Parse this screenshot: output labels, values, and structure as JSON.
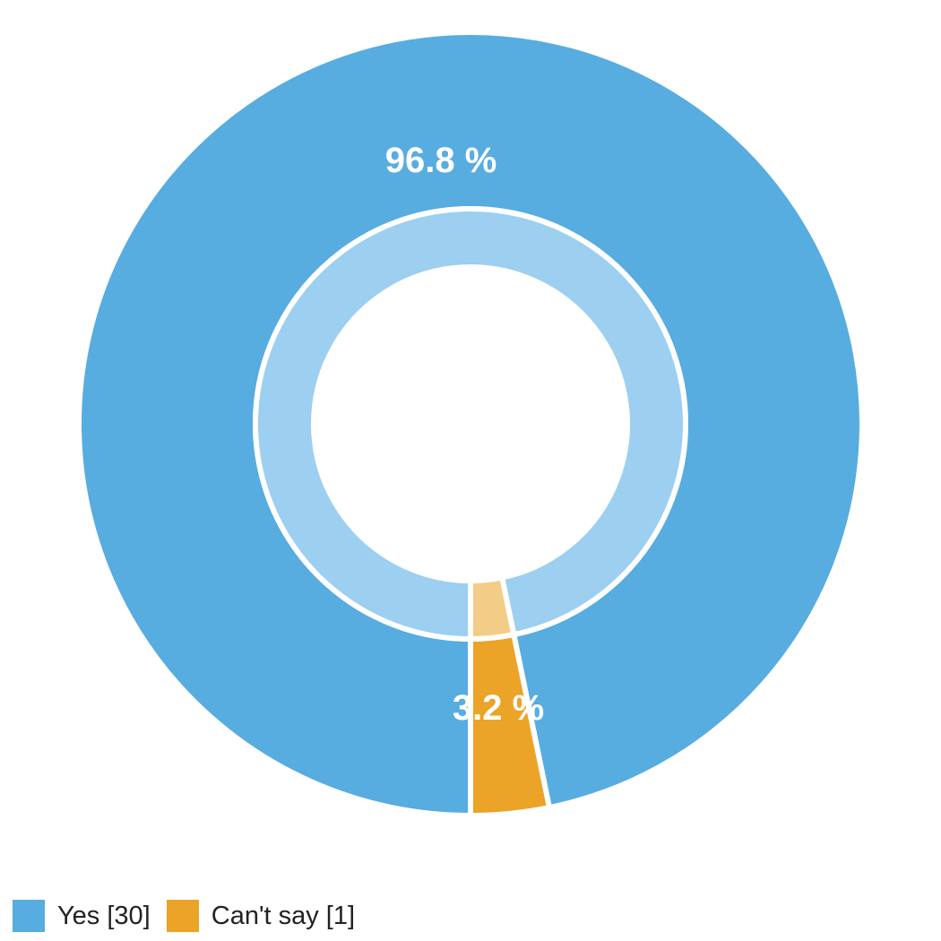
{
  "chart_data": {
    "type": "pie",
    "donut": true,
    "series": [
      {
        "name": "Yes [30]",
        "value": 30,
        "percent_label": "96.8 %",
        "color": "#57ace0"
      },
      {
        "name": "Can't say [1]",
        "value": 1,
        "percent_label": "3.2 %",
        "color": "#eba328"
      }
    ],
    "inner_ring_colors": [
      "#9ccff0",
      "#f3cc87"
    ],
    "legend_position": "bottom-left"
  }
}
